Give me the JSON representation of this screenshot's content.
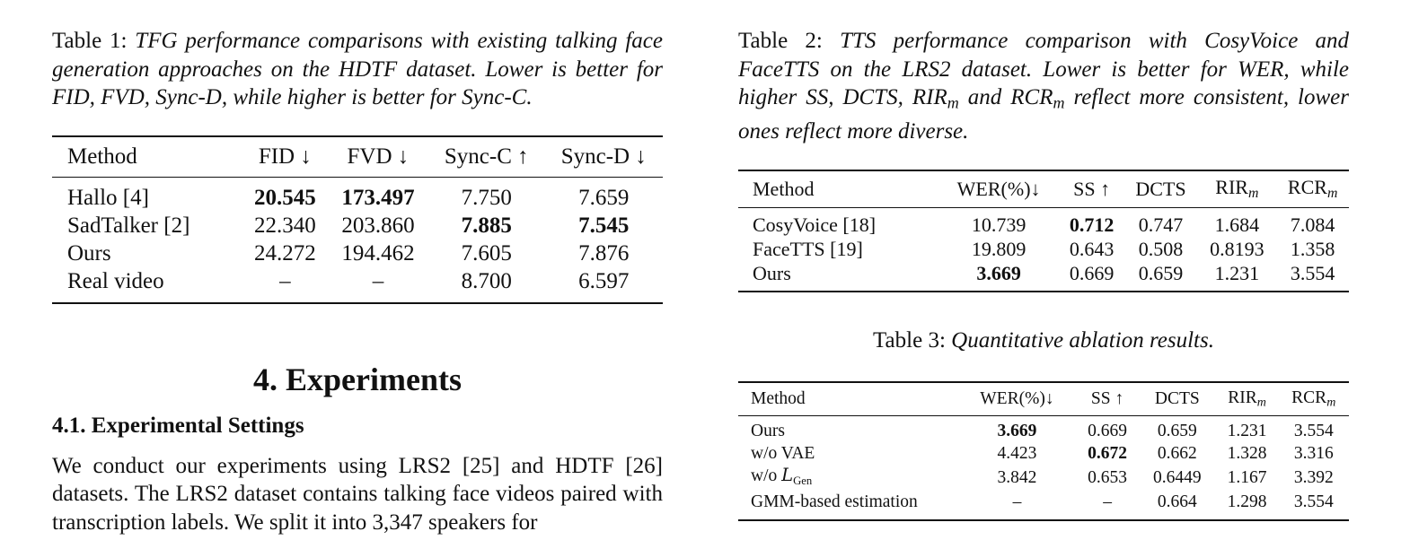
{
  "table1": {
    "caption_label": "Table 1:",
    "caption_text": "TFG performance comparisons with existing talking face generation approaches on the HDTF dataset. Lower is better for FID, FVD, Sync-D, while higher is better for Sync-C.",
    "headers": [
      "Method",
      "FID ↓",
      "FVD ↓",
      "Sync-C ↑",
      "Sync-D ↓"
    ],
    "rows": [
      [
        "Hallo [4]",
        "20.545",
        "173.497",
        "7.750",
        "7.659"
      ],
      [
        "SadTalker [2]",
        "22.340",
        "203.860",
        "7.885",
        "7.545"
      ],
      [
        "Ours",
        "24.272",
        "194.462",
        "7.605",
        "7.876"
      ],
      [
        "Real video",
        "–",
        "–",
        "8.700",
        "6.597"
      ]
    ]
  },
  "section": {
    "title": "4.  Experiments",
    "subsection_title": "4.1.  Experimental Settings",
    "body": "We conduct our experiments using LRS2 [25] and HDTF [26] datasets. The LRS2 dataset contains talking face videos paired with transcription labels.  We split it into 3,347 speakers for"
  },
  "table2": {
    "caption_label": "Table 2:",
    "caption_text_1": "TTS performance comparison with CosyVoice and FaceTTS on the LRS2 dataset. Lower is better for WER, while higher SS, DCTS, RIR",
    "caption_sub_1": "m",
    "caption_text_2": " and RCR",
    "caption_sub_2": "m",
    "caption_text_3": " reflect more consistent, lower ones reflect more diverse.",
    "headers": [
      "Method",
      "WER(%)↓",
      "SS ↑",
      "DCTS",
      "RIR",
      "RCR"
    ],
    "header_sub": "m",
    "rows": [
      [
        "CosyVoice [18]",
        "10.739",
        "0.712",
        "0.747",
        "1.684",
        "7.084"
      ],
      [
        "FaceTTS [19]",
        "19.809",
        "0.643",
        "0.508",
        "0.8193",
        "1.358"
      ],
      [
        "Ours",
        "3.669",
        "0.669",
        "0.659",
        "1.231",
        "3.554"
      ]
    ]
  },
  "table3": {
    "caption_label": "Table 3:",
    "caption_text": "Quantitative ablation results.",
    "headers": [
      "Method",
      "WER(%)↓",
      "SS ↑",
      "DCTS",
      "RIR",
      "RCR"
    ],
    "header_sub": "m",
    "row_wo_lgen_prefix": "w/o ",
    "row_wo_lgen_symbol": "L",
    "row_wo_lgen_sub": "Gen",
    "rows": [
      [
        "Ours",
        "3.669",
        "0.669",
        "0.659",
        "1.231",
        "3.554"
      ],
      [
        "w/o VAE",
        "4.423",
        "0.672",
        "0.662",
        "1.328",
        "3.316"
      ],
      [
        "",
        "3.842",
        "0.653",
        "0.6449",
        "1.167",
        "3.392"
      ],
      [
        "GMM-based estimation",
        "–",
        "–",
        "0.664",
        "1.298",
        "3.554"
      ]
    ]
  }
}
